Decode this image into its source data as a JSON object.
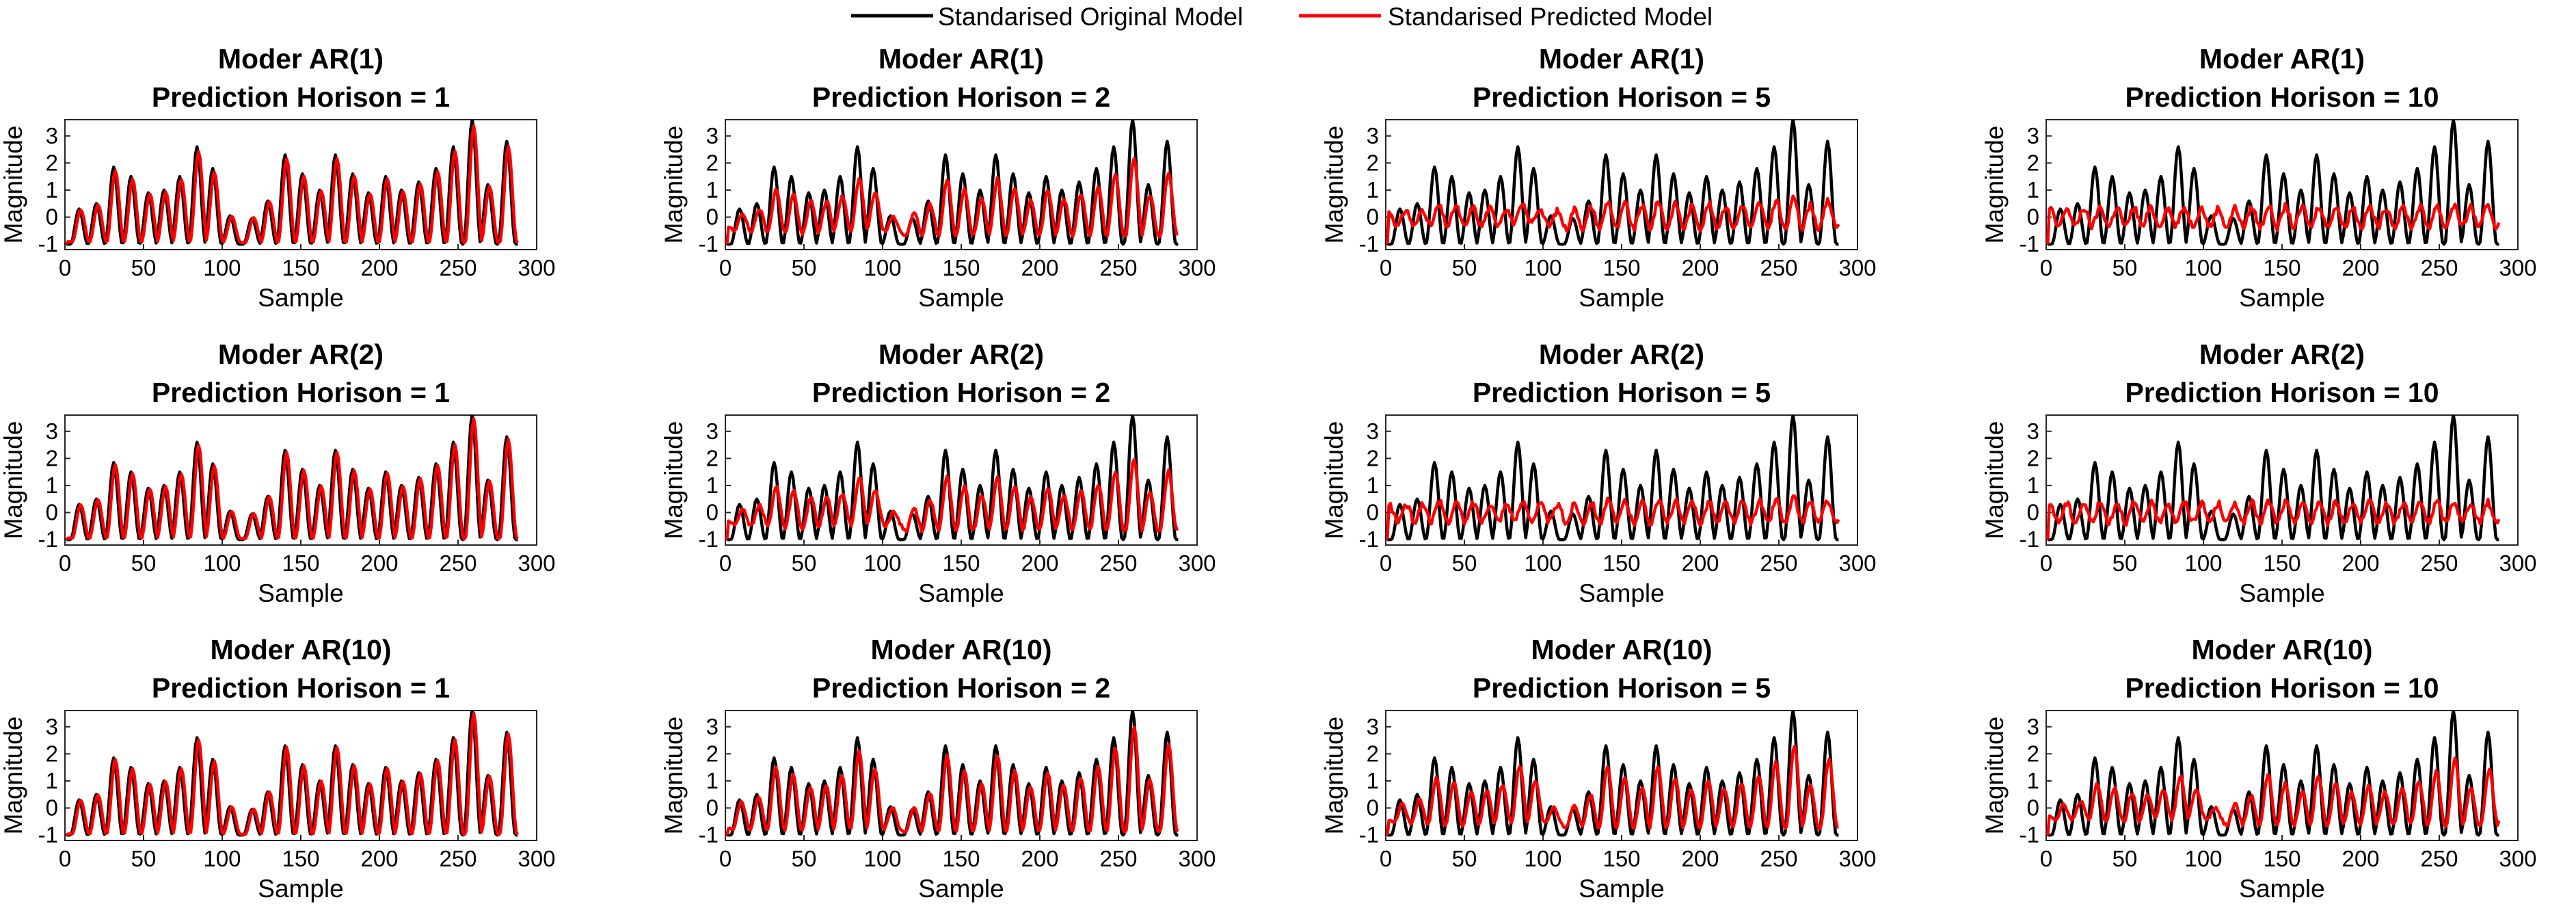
{
  "legend": {
    "entries": [
      {
        "label": "Standarised Original Model",
        "color": "#000000"
      },
      {
        "label": "Standarised Predicted Model",
        "color": "#ff0000"
      }
    ],
    "placement": "top-center"
  },
  "chart_data": {
    "type": "line",
    "layout": "3x4 grid of subplots",
    "rows": [
      {
        "model": "Moder AR(1)",
        "key": "ar1"
      },
      {
        "model": "Moder AR(2)",
        "key": "ar2"
      },
      {
        "model": "Moder AR(10)",
        "key": "ar10"
      }
    ],
    "columns": [
      {
        "horizon_title": "Prediction Horison = 1",
        "h": 1
      },
      {
        "horizon_title": "Prediction Horison = 2",
        "h": 2
      },
      {
        "horizon_title": "Prediction Horison = 5",
        "h": 5
      },
      {
        "horizon_title": "Prediction Horison = 10",
        "h": 10
      }
    ],
    "xlabel": "Sample",
    "ylabel": "Magnitude",
    "xlim": [
      0,
      300
    ],
    "ylim": [
      -1.2,
      3.6
    ],
    "xticks": [
      0,
      50,
      100,
      150,
      200,
      250,
      300
    ],
    "yticks": [
      -1,
      0,
      1,
      2,
      3
    ],
    "grid": false,
    "n_samples": 288,
    "original_series": {
      "name": "Standarised Original Model",
      "color": "#000000",
      "peaks": [
        {
          "x": 8,
          "y": 0.3
        },
        {
          "x": 19,
          "y": 0.5
        },
        {
          "x": 30,
          "y": 1.85
        },
        {
          "x": 41,
          "y": 1.5
        },
        {
          "x": 52,
          "y": 0.9
        },
        {
          "x": 62,
          "y": 1.0
        },
        {
          "x": 72,
          "y": 1.5
        },
        {
          "x": 83,
          "y": 2.6
        },
        {
          "x": 93,
          "y": 1.8
        },
        {
          "x": 104,
          "y": 0.05
        },
        {
          "x": 118,
          "y": -0.05
        },
        {
          "x": 128,
          "y": 0.6
        },
        {
          "x": 139,
          "y": 2.3
        },
        {
          "x": 150,
          "y": 1.6
        },
        {
          "x": 161,
          "y": 1.0
        },
        {
          "x": 171,
          "y": 2.3
        },
        {
          "x": 182,
          "y": 1.6
        },
        {
          "x": 192,
          "y": 0.9
        },
        {
          "x": 203,
          "y": 1.5
        },
        {
          "x": 213,
          "y": 1.0
        },
        {
          "x": 224,
          "y": 1.3
        },
        {
          "x": 235,
          "y": 1.8
        },
        {
          "x": 246,
          "y": 2.6
        },
        {
          "x": 258,
          "y": 3.6
        },
        {
          "x": 268,
          "y": 1.2
        },
        {
          "x": 280,
          "y": 2.8
        }
      ],
      "trough": -1.0
    },
    "predicted_series": {
      "name": "Standarised Predicted Model",
      "color": "#ff0000",
      "fit_quality": {
        "ar1": {
          "1": 0.93,
          "2": 0.55,
          "5": 0.12,
          "10": 0.03
        },
        "ar2": {
          "1": 0.96,
          "2": 0.5,
          "5": 0.06,
          "10": 0.02
        },
        "ar10": {
          "1": 0.97,
          "2": 0.82,
          "5": 0.6,
          "10": 0.45
        }
      }
    }
  }
}
